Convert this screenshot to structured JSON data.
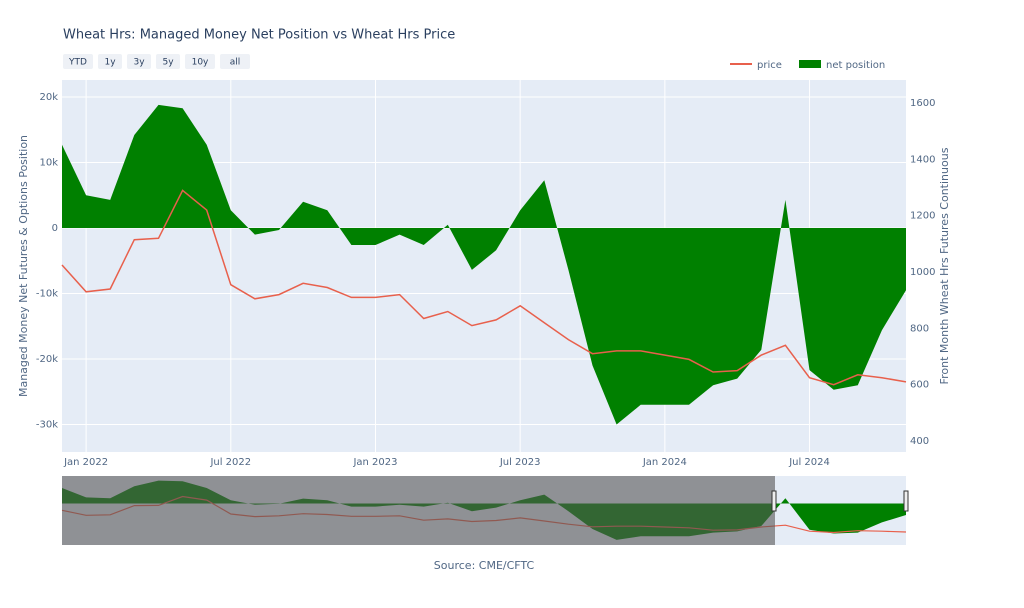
{
  "chart_data": {
    "type": "area",
    "title": "Wheat Hrs: Managed Money Net Position vs Wheat Hrs Price",
    "range_buttons": [
      "YTD",
      "1y",
      "3y",
      "5y",
      "10y",
      "all"
    ],
    "y_label": "Managed Money Net Futures & Options Position",
    "y2_label": "Front Month Wheat Hrs Futures Continuous",
    "source": "Source: CME/CFTC",
    "x": [
      "2021-12",
      "2022-01",
      "2022-02",
      "2022-03",
      "2022-04",
      "2022-05",
      "2022-06",
      "2022-07",
      "2022-08",
      "2022-09",
      "2022-10",
      "2022-11",
      "2022-12",
      "2023-01",
      "2023-02",
      "2023-03",
      "2023-04",
      "2023-05",
      "2023-06",
      "2023-07",
      "2023-08",
      "2023-09",
      "2023-10",
      "2023-11",
      "2023-12",
      "2024-01",
      "2024-02",
      "2024-03",
      "2024-04",
      "2024-05",
      "2024-06",
      "2024-07",
      "2024-08",
      "2024-09",
      "2024-10",
      "2024-11"
    ],
    "series": [
      {
        "name": "net position",
        "type": "area",
        "color": "#008000",
        "axis": "y",
        "values": [
          12700,
          5000,
          4300,
          14200,
          18800,
          18300,
          12700,
          2700,
          -1000,
          -300,
          4000,
          2700,
          -2600,
          -2600,
          -1000,
          -2600,
          500,
          -6400,
          -3400,
          2700,
          7300,
          -6400,
          -21000,
          -30000,
          -27000,
          -27000,
          -27000,
          -24000,
          -23000,
          -18600,
          4300,
          -21700,
          -24700,
          -24000,
          -15600,
          -9500
        ]
      },
      {
        "name": "price",
        "type": "line",
        "color": "#e8604c",
        "axis": "y2",
        "values": [
          1025,
          930,
          940,
          1115,
          1120,
          1290,
          1220,
          955,
          905,
          920,
          960,
          945,
          910,
          910,
          920,
          835,
          860,
          810,
          830,
          880,
          820,
          760,
          710,
          720,
          720,
          705,
          690,
          645,
          650,
          705,
          740,
          625,
          600,
          635,
          625,
          610
        ]
      }
    ],
    "xlim": [
      "2021-12",
      "2024-11"
    ],
    "xticks": [
      {
        "value": "2022-01",
        "label": "Jan 2022"
      },
      {
        "value": "2022-07",
        "label": "Jul 2022"
      },
      {
        "value": "2023-01",
        "label": "Jan 2023"
      },
      {
        "value": "2023-07",
        "label": "Jul 2023"
      },
      {
        "value": "2024-01",
        "label": "Jan 2024"
      },
      {
        "value": "2024-07",
        "label": "Jul 2024"
      }
    ],
    "ylim": [
      -34200,
      22600
    ],
    "yticks": [
      {
        "value": -30000,
        "label": "-30k"
      },
      {
        "value": -20000,
        "label": "-20k"
      },
      {
        "value": -10000,
        "label": "-10k"
      },
      0,
      {
        "value": 10000,
        "label": "10k"
      },
      {
        "value": 20000,
        "label": "20k"
      }
    ],
    "y2lim": [
      361,
      1682
    ],
    "y2ticks": [
      400,
      600,
      800,
      1000,
      1200,
      1400,
      1600
    ],
    "grid": true
  }
}
